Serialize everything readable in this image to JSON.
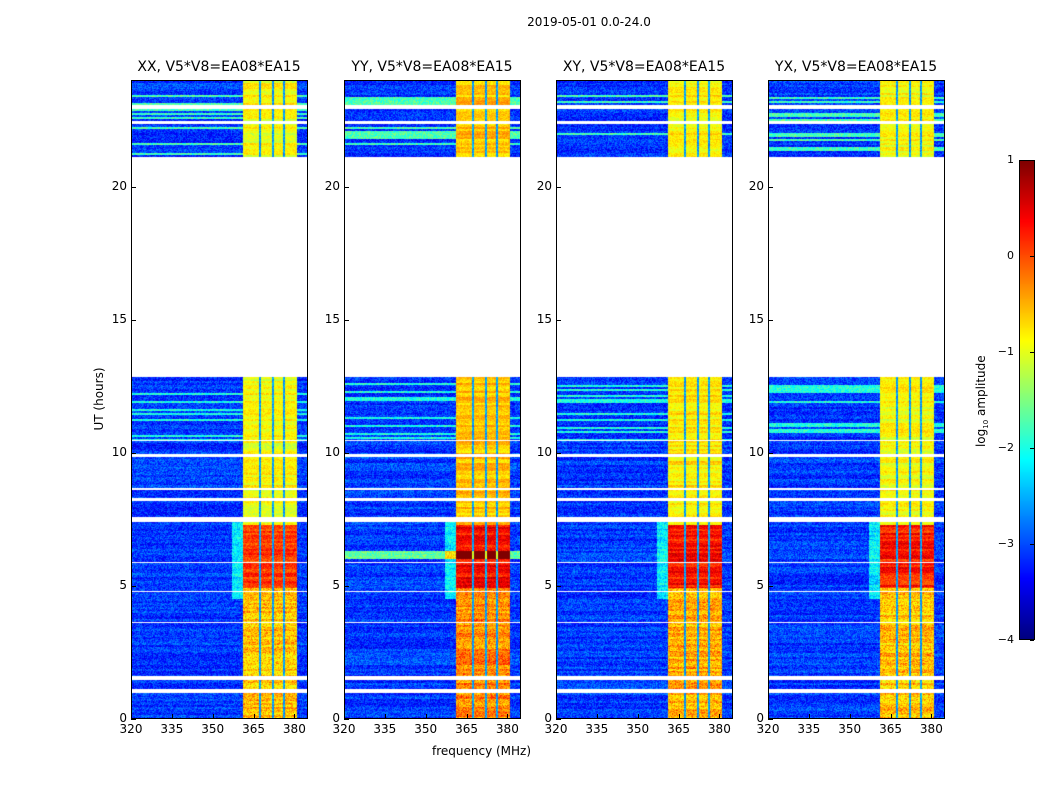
{
  "chart_data": {
    "type": "heatmap",
    "suptitle": "2019-05-01 0.0-24.0",
    "xlabel": "frequency (MHz)",
    "ylabel": "UT (hours)",
    "xlim": [
      320,
      385
    ],
    "ylim": [
      0,
      24
    ],
    "xticks": [
      "320",
      "335",
      "350",
      "365",
      "380"
    ],
    "xtick_values": [
      320,
      335,
      350,
      365,
      380
    ],
    "yticks": [
      "0",
      "5",
      "10",
      "15",
      "20"
    ],
    "ytick_values": [
      0,
      5,
      10,
      15,
      20
    ],
    "panels": [
      {
        "title": "XX, V5*V8=EA08*EA15",
        "burst_level": 0.1,
        "band_level": -0.9
      },
      {
        "title": "YY, V5*V8=EA08*EA15",
        "burst_level": 0.35,
        "band_level": -0.6
      },
      {
        "title": "XY, V5*V8=EA08*EA15",
        "burst_level": 0.3,
        "band_level": -0.8
      },
      {
        "title": "YX, V5*V8=EA08*EA15",
        "burst_level": 0.25,
        "band_level": -0.9
      }
    ],
    "background_level": -3.1,
    "rfi_band_mhz": [
      361,
      381
    ],
    "rfi_gaps_mhz": [
      367.3,
      372.3,
      376.3
    ],
    "burst_hours": [
      4.9,
      7.3
    ],
    "flagged_hours": [
      [
        0.95,
        1.1
      ],
      [
        1.45,
        1.6
      ],
      [
        3.6,
        3.65
      ],
      [
        4.75,
        4.8
      ],
      [
        5.85,
        5.9
      ],
      [
        7.4,
        7.6
      ],
      [
        8.2,
        8.32
      ],
      [
        8.6,
        8.68
      ],
      [
        9.85,
        9.95
      ],
      [
        10.45,
        10.5
      ],
      [
        12.85,
        21.15
      ],
      [
        22.4,
        22.5
      ],
      [
        22.95,
        23.1
      ]
    ],
    "colorbar": {
      "label": "log10 amplitude",
      "label_main": "log",
      "label_sub": "10",
      "label_rest": " amplitude",
      "range": [
        -4,
        1
      ],
      "ticks": [
        "1",
        "0",
        "−1",
        "−2",
        "−3",
        "−4"
      ],
      "tick_values": [
        1,
        0,
        -1,
        -2,
        -3,
        -4
      ],
      "colormap": "jet"
    }
  }
}
